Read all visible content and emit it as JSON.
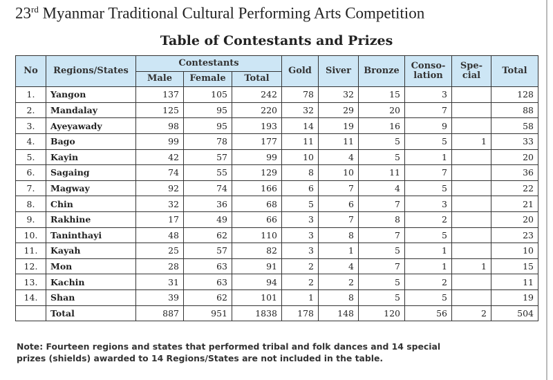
{
  "title": {
    "prefix": "23",
    "sup": "rd",
    "rest": " Myanmar Traditional Cultural Performing Arts Competition"
  },
  "subtitle": "Table of Contestants and Prizes",
  "headers": {
    "no": "No",
    "region": "Regions/States",
    "contestants": "Contestants",
    "male": "Male",
    "female": "Female",
    "total": "Total",
    "gold": "Gold",
    "silver": "Siver",
    "bronze": "Bronze",
    "consolation_1": "Conso-",
    "consolation_2": "lation",
    "special_1": "Spe-",
    "special_2": "cial",
    "prize_total": "Total"
  },
  "rows": [
    [
      "1.",
      "Yangon",
      "137",
      "105",
      "242",
      "78",
      "32",
      "15",
      "3",
      "",
      "128"
    ],
    [
      "2.",
      "Mandalay",
      "125",
      "95",
      "220",
      "32",
      "29",
      "20",
      "7",
      "",
      "88"
    ],
    [
      "3.",
      "Ayeyawady",
      "98",
      "95",
      "193",
      "14",
      "19",
      "16",
      "9",
      "",
      "58"
    ],
    [
      "4.",
      "Bago",
      "99",
      "78",
      "177",
      "11",
      "11",
      "5",
      "5",
      "1",
      "33"
    ],
    [
      "5.",
      "Kayin",
      "42",
      "57",
      "99",
      "10",
      "4",
      "5",
      "1",
      "",
      "20"
    ],
    [
      "6.",
      "Sagaing",
      "74",
      "55",
      "129",
      "8",
      "10",
      "11",
      "7",
      "",
      "36"
    ],
    [
      "7.",
      "Magway",
      "92",
      "74",
      "166",
      "6",
      "7",
      "4",
      "5",
      "",
      "22"
    ],
    [
      "8.",
      "Chin",
      "32",
      "36",
      "68",
      "5",
      "6",
      "7",
      "3",
      "",
      "21"
    ],
    [
      "9.",
      "Rakhine",
      "17",
      "49",
      "66",
      "3",
      "7",
      "8",
      "2",
      "",
      "20"
    ],
    [
      "10.",
      "Taninthayi",
      "48",
      "62",
      "110",
      "3",
      "8",
      "7",
      "5",
      "",
      "23"
    ],
    [
      "11.",
      "Kayah",
      "25",
      "57",
      "82",
      "3",
      "1",
      "5",
      "1",
      "",
      "10"
    ],
    [
      "12.",
      "Mon",
      "28",
      "63",
      "91",
      "2",
      "4",
      "7",
      "1",
      "1",
      "15"
    ],
    [
      "13.",
      "Kachin",
      "31",
      "63",
      "94",
      "2",
      "2",
      "5",
      "2",
      "",
      "11"
    ],
    [
      "14.",
      "Shan",
      "39",
      "62",
      "101",
      "1",
      "8",
      "5",
      "5",
      "",
      "19"
    ],
    [
      "",
      "Total",
      "887",
      "951",
      "1838",
      "178",
      "148",
      "120",
      "56",
      "2",
      "504"
    ]
  ],
  "note": {
    "line1": "Note: Fourteen regions and states that performed tribal and folk dances and 14 special",
    "line2": "prizes (shields) awarded to 14 Regions/States are not included in the table."
  },
  "colors": {
    "header_bg": "#cde6f5"
  }
}
